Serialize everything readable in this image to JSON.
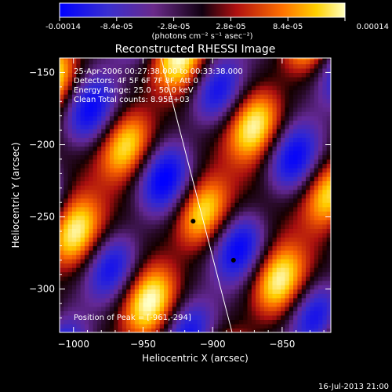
{
  "colorbar": {
    "tick_labels": [
      "-0.00014",
      "-8.4e-05",
      "-2.8e-05",
      "2.8e-05",
      "8.4e-05",
      "0.00014"
    ],
    "unit_label": "(photons cm⁻² s⁻¹ asec⁻²)"
  },
  "chart_data": {
    "type": "heatmap",
    "title": "Reconstructed RHESSI Image",
    "xlabel": "Heliocentric X (arcsec)",
    "ylabel": "Heliocentric Y (arcsec)",
    "xlim": [
      -1010,
      -815
    ],
    "ylim": [
      -330,
      -140
    ],
    "x_ticks": [
      -1000,
      -950,
      -900,
      -850
    ],
    "y_ticks": [
      -150,
      -200,
      -250,
      -300
    ],
    "x_tick_labels": [
      "−1000",
      "−950",
      "−900",
      "−850"
    ],
    "y_tick_labels": [
      "−150",
      "−200",
      "−250",
      "−300"
    ],
    "color_range": [
      -0.00014,
      0.00014
    ],
    "annotations": [
      "25-Apr-2006 00:27:38.000 to 00:33:38.000",
      "Detectors: 4F 5F 6F 7F 8F, Att 0",
      "Energy Range: 25.0 - 50.0 keV",
      "Clean     Total counts: 8.95E+03"
    ],
    "peak_label": "Position of Peak = [-961,-294]",
    "peak_position": [
      -961,
      -294
    ],
    "marked_points": [
      [
        -914,
        -253
      ],
      [
        -885,
        -280
      ]
    ],
    "limb_line": [
      [
        -937,
        -140
      ],
      [
        -886,
        -330
      ]
    ]
  },
  "footer": {
    "timestamp": "16-Jul-2013 21:00"
  }
}
